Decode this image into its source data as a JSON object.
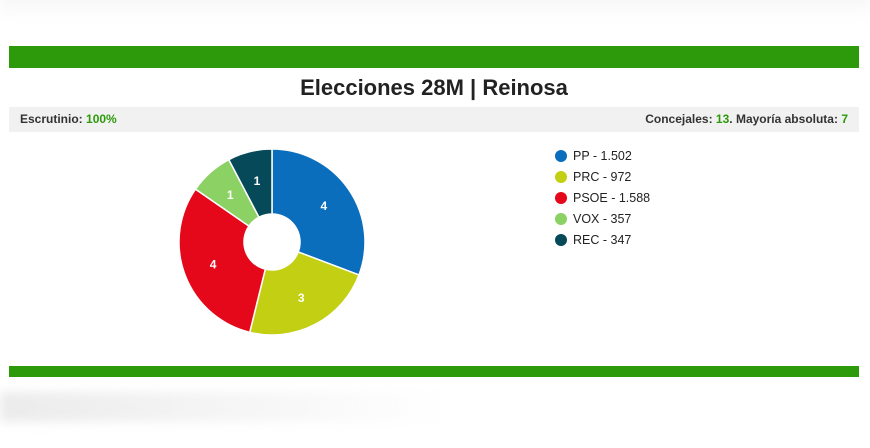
{
  "header": {
    "title": "Elecciones 28M | Reinosa"
  },
  "info": {
    "scrutiny_label": "Escrutinio: ",
    "scrutiny_value": "100%",
    "councillors_label": "Concejales: ",
    "councillors_value": "13",
    "majority_label": ". Mayoría absoluta: ",
    "majority_value": "7"
  },
  "chart_data": {
    "type": "pie",
    "title": "Elecciones 28M | Reinosa",
    "slices": [
      {
        "party": "PP",
        "votes": "1.502",
        "seats": 4,
        "color": "#0a6ebd"
      },
      {
        "party": "PRC",
        "votes": "972",
        "seats": 3,
        "color": "#c3cf12"
      },
      {
        "party": "PSOE",
        "votes": "1.588",
        "seats": 4,
        "color": "#e4081a"
      },
      {
        "party": "VOX",
        "votes": "357",
        "seats": 1,
        "color": "#8bd163"
      },
      {
        "party": "REC",
        "votes": "347",
        "seats": 1,
        "color": "#064a5a"
      }
    ],
    "legend_position": "right"
  }
}
